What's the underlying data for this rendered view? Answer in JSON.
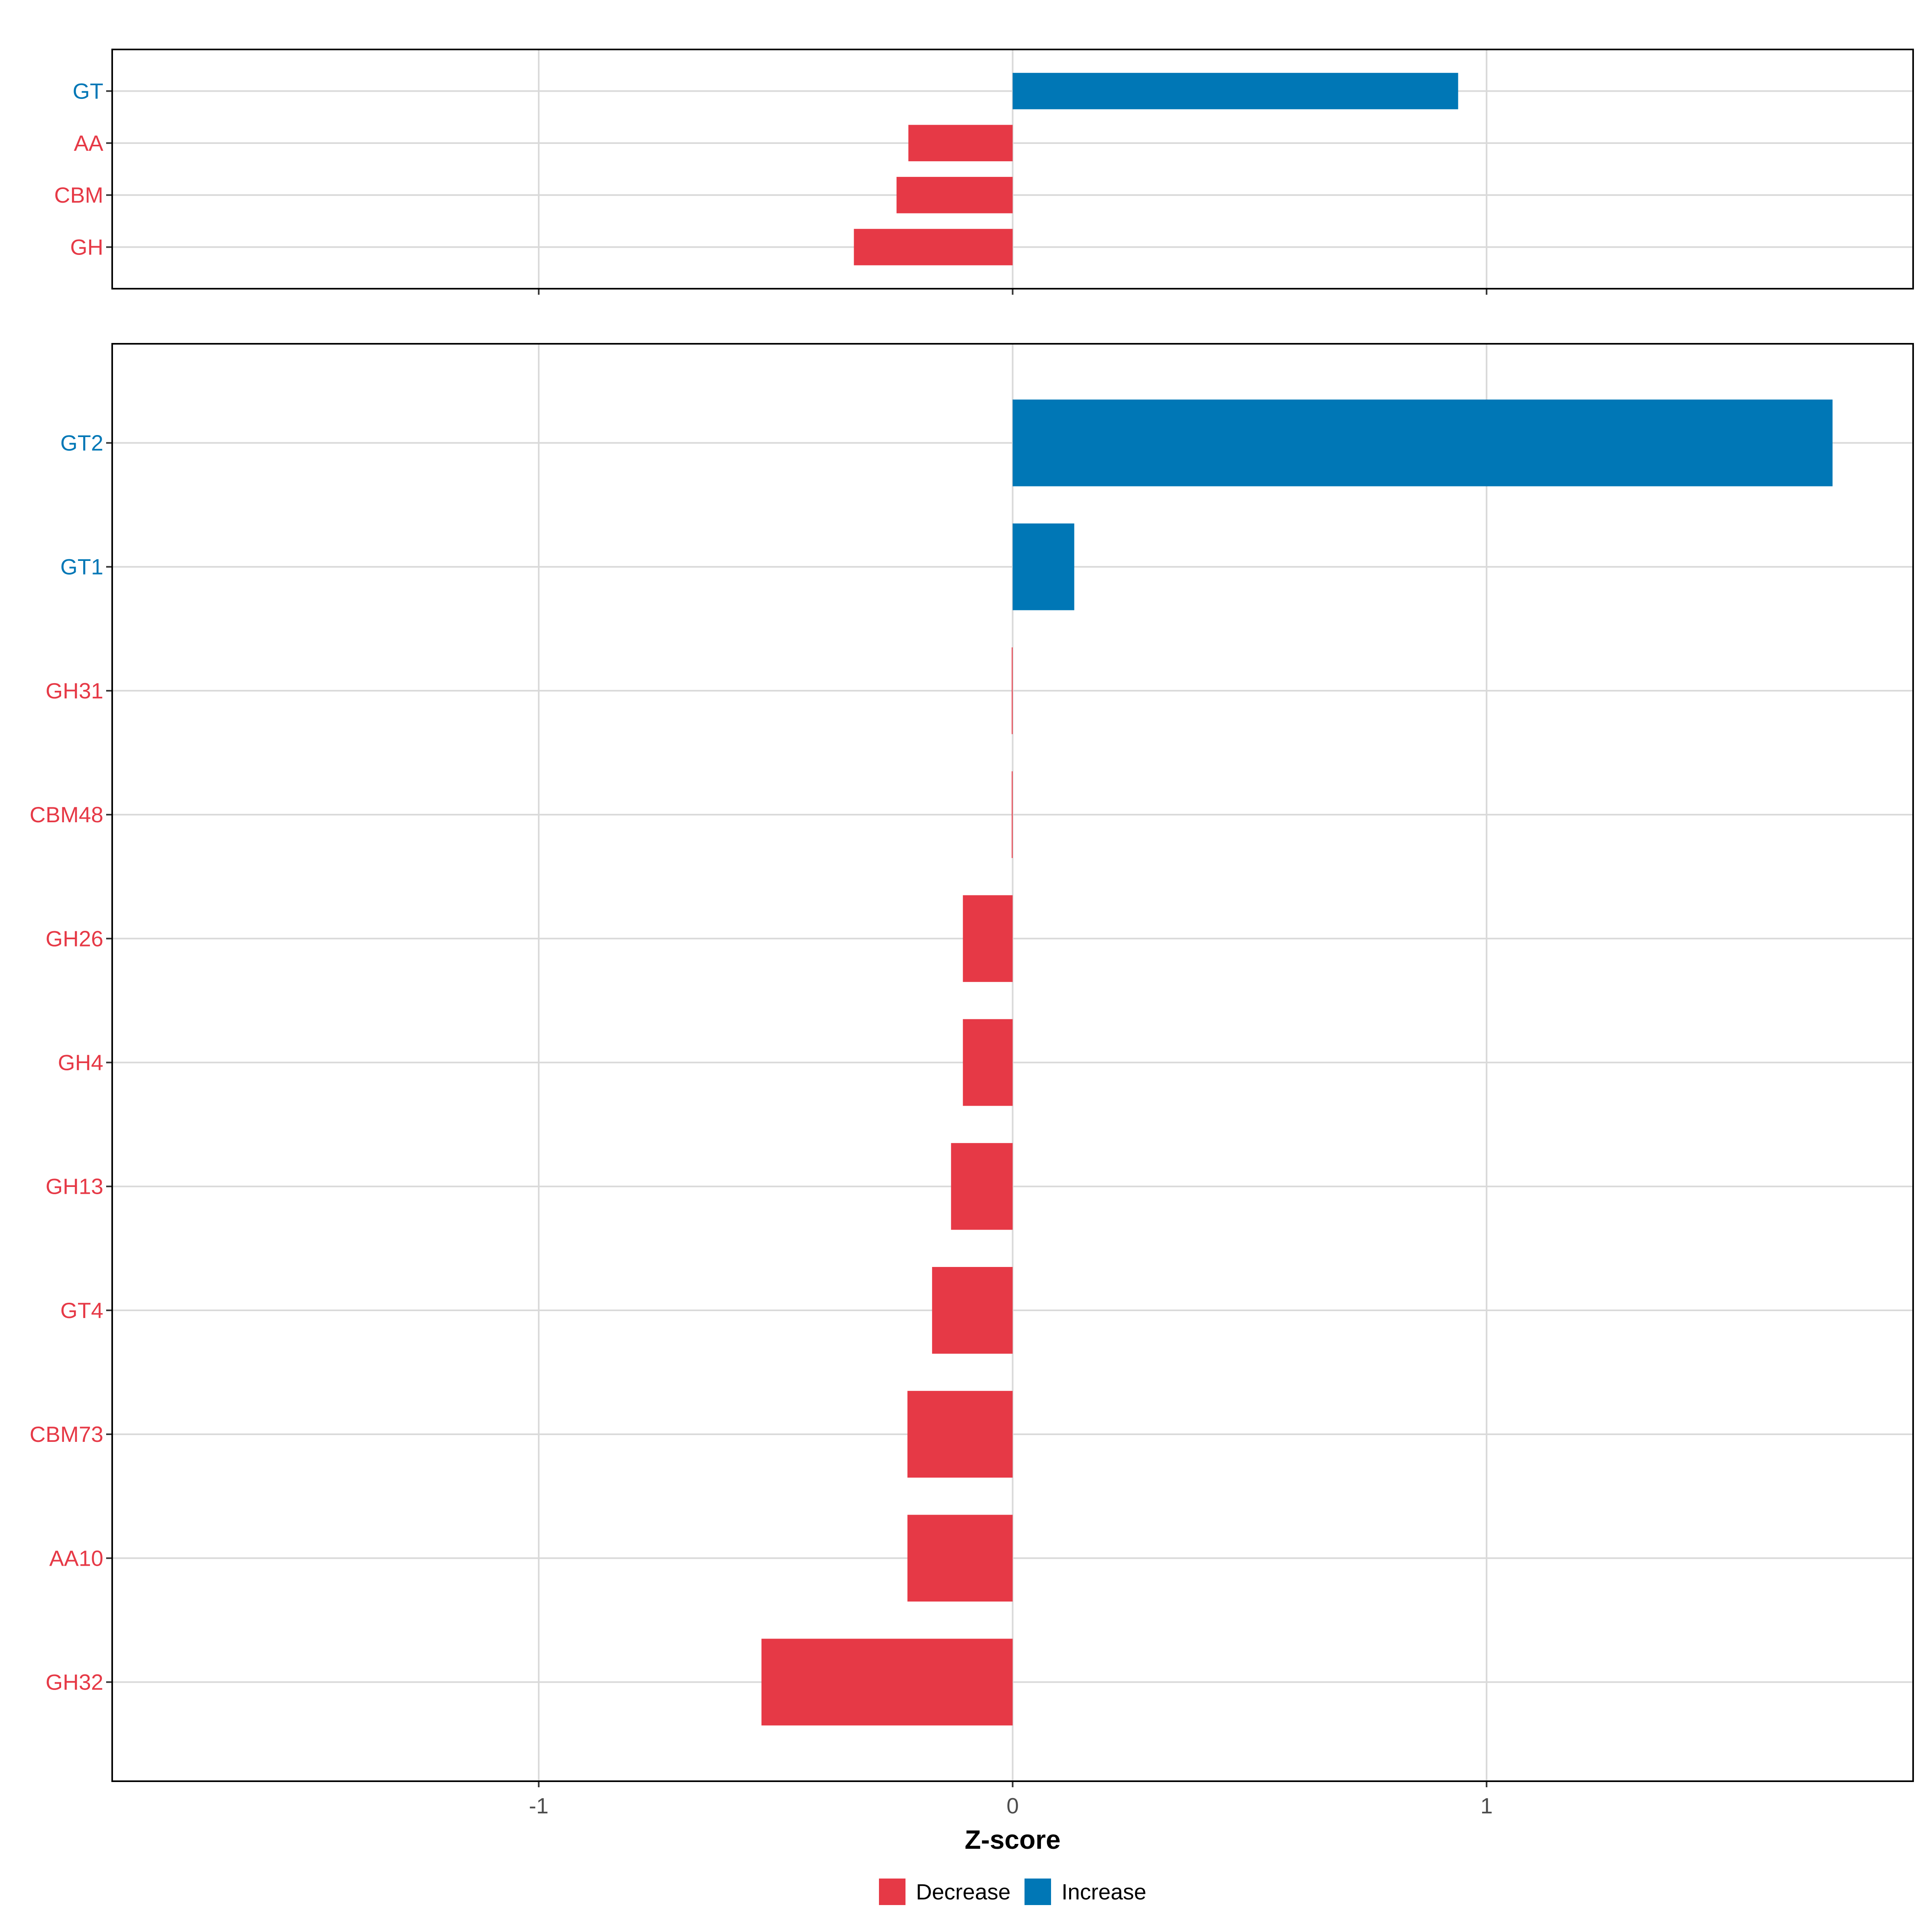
{
  "chart_data": {
    "type": "bar",
    "orientation": "horizontal",
    "xlabel": "Z-score",
    "xlim": [
      -1.9,
      1.9
    ],
    "xticks": [
      -1,
      0,
      1
    ],
    "xtick_labels": [
      "-1",
      "0",
      "1"
    ],
    "grid": true,
    "legend": {
      "placement": "bottom",
      "entries": [
        {
          "label": "Decrease",
          "color": "#E63946"
        },
        {
          "label": "Increase",
          "color": "#0077B6"
        }
      ]
    },
    "colors": {
      "Decrease": "#E63946",
      "Increase": "#0077B6"
    },
    "panels": [
      {
        "categories": [
          "GT",
          "AA",
          "CBM",
          "GH"
        ],
        "values": [
          0.94,
          -0.22,
          -0.245,
          -0.335
        ],
        "direction": [
          "Increase",
          "Decrease",
          "Decrease",
          "Decrease"
        ]
      },
      {
        "categories": [
          "GT2",
          "GT1",
          "GH31",
          "CBM48",
          "GH26",
          "GH4",
          "GH13",
          "GT4",
          "CBM73",
          "AA10",
          "GH32"
        ],
        "values": [
          1.73,
          0.13,
          -0.002,
          -0.002,
          -0.105,
          -0.105,
          -0.13,
          -0.17,
          -0.222,
          -0.222,
          -0.53
        ],
        "direction": [
          "Increase",
          "Increase",
          "Decrease",
          "Decrease",
          "Decrease",
          "Decrease",
          "Decrease",
          "Decrease",
          "Decrease",
          "Decrease",
          "Decrease"
        ]
      }
    ]
  }
}
